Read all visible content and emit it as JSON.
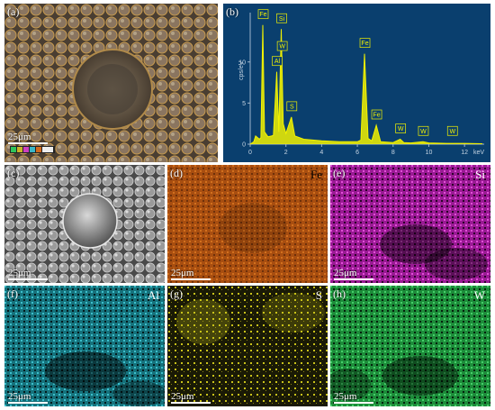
{
  "panels": [
    {
      "id": "a",
      "label": "(a)",
      "element": "",
      "scale": "25μm",
      "type": "sem-eds-overlay"
    },
    {
      "id": "b",
      "label": "(b)",
      "type": "eds-spectrum"
    },
    {
      "id": "c",
      "label": "(c)",
      "element": "",
      "scale": "25μm",
      "type": "sem"
    },
    {
      "id": "d",
      "label": "(d)",
      "element": "Fe",
      "scale": "25μm",
      "color": "#b5560e"
    },
    {
      "id": "e",
      "label": "(e)",
      "element": "Si",
      "scale": "25μm",
      "color": "#c21fb8"
    },
    {
      "id": "f",
      "label": "(f)",
      "element": "Al",
      "scale": "25μm",
      "color": "#1e8f9a"
    },
    {
      "id": "g",
      "label": "(g)",
      "element": "S",
      "scale": "25μm",
      "color": "#c9c21a"
    },
    {
      "id": "h",
      "label": "(h)",
      "element": "W",
      "scale": "25μm",
      "color": "#27b04a"
    }
  ],
  "chart_data": {
    "type": "line",
    "title": "",
    "xlabel": "keV",
    "ylabel": "cps/eV",
    "xlim": [
      0,
      13
    ],
    "ylim": [
      0,
      16
    ],
    "x_ticks": [
      "0",
      "2",
      "4",
      "6",
      "8",
      "10",
      "12"
    ],
    "y_ticks": [
      "0",
      "5",
      "10"
    ],
    "background": "#0a3f6e",
    "series_color": "#f2f200",
    "series": [
      {
        "name": "",
        "x": [
          0.0,
          0.2,
          0.3,
          0.52,
          0.6,
          0.705,
          0.8,
          1.0,
          1.2,
          1.3,
          1.487,
          1.6,
          1.74,
          1.85,
          2.0,
          2.307,
          2.5,
          3.0,
          4.0,
          5.0,
          6.0,
          6.2,
          6.4,
          6.6,
          6.8,
          7.058,
          7.3,
          8.0,
          8.398,
          8.6,
          9.0,
          9.672,
          10.0,
          11.0,
          11.0,
          12.0,
          13.0
        ],
        "y": [
          0.0,
          0.3,
          1.0,
          0.6,
          0.8,
          14.5,
          1.5,
          0.9,
          1.0,
          1.1,
          8.8,
          1.5,
          14.0,
          2.5,
          1.3,
          3.3,
          1.0,
          0.6,
          0.4,
          0.3,
          0.3,
          0.5,
          11.0,
          0.7,
          0.4,
          2.3,
          0.3,
          0.2,
          0.6,
          0.2,
          0.15,
          0.3,
          0.15,
          0.1,
          0.1,
          0.1,
          0.05
        ]
      }
    ],
    "annotations": [
      {
        "text": "Fe",
        "x": 0.705,
        "y": 14.5
      },
      {
        "text": "Si",
        "x": 1.74,
        "y": 14.0
      },
      {
        "text": "W",
        "x": 1.77,
        "y": 11.5
      },
      {
        "text": "Al",
        "x": 1.487,
        "y": 8.8
      },
      {
        "text": "S",
        "x": 2.307,
        "y": 3.3
      },
      {
        "text": "Fe",
        "x": 6.4,
        "y": 11.0
      },
      {
        "text": "Fe",
        "x": 7.058,
        "y": 2.3
      },
      {
        "text": "W",
        "x": 8.398,
        "y": 0.6
      },
      {
        "text": "W",
        "x": 9.672,
        "y": 0.3
      },
      {
        "text": "W",
        "x": 11.3,
        "y": 0.3
      }
    ]
  }
}
